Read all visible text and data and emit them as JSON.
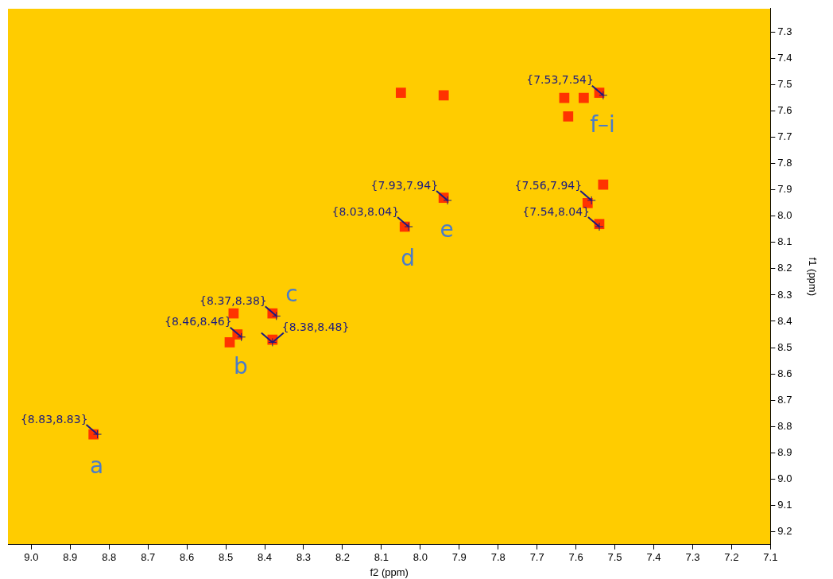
{
  "chart_data": {
    "type": "scatter",
    "xlabel": "f2 (ppm)",
    "ylabel": "f1 (ppm)",
    "x": [
      8.84,
      8.48,
      8.47,
      8.49,
      8.38,
      8.38,
      8.04,
      8.05,
      7.94,
      7.94,
      7.63,
      7.62,
      7.58,
      7.54,
      7.57,
      7.53,
      7.54
    ],
    "series": [
      {
        "color": "#ff3300",
        "values": [
          8.83,
          8.37,
          8.45,
          8.48,
          8.37,
          8.47,
          8.04,
          7.53,
          7.93,
          7.54,
          7.55,
          7.62,
          7.55,
          7.53,
          7.95,
          7.88,
          8.03
        ]
      }
    ],
    "marker": "square",
    "xlim": [
      9.06,
      7.1
    ],
    "xticks": [
      {
        "value": 9,
        "label": "9.0"
      },
      8.9,
      8.8,
      8.7,
      8.6,
      8.5,
      8.4,
      8.3,
      8.2,
      8.1,
      {
        "value": 8,
        "label": "8.0"
      },
      7.9,
      7.8,
      7.7,
      7.6,
      7.5,
      7.4,
      7.3,
      7.2,
      7.1
    ],
    "ylim": [
      9.25,
      7.21
    ],
    "yticks": [
      7.3,
      7.4,
      7.5,
      7.6,
      7.7,
      7.8,
      7.9,
      {
        "value": 8,
        "label": "8.0"
      },
      8.1,
      8.2,
      8.3,
      8.4,
      8.5,
      8.6,
      8.7,
      8.8,
      8.9,
      {
        "value": 9,
        "label": "9.0"
      },
      9.1,
      9.2
    ],
    "grid": false,
    "legend": false,
    "annotations": [
      {
        "text": "{8.83,8.83}",
        "x": 8.83,
        "y": 8.83
      },
      {
        "text": "{8.46,8.46}",
        "x": 8.46,
        "y": 8.46
      },
      {
        "text": "{8.37,8.38}",
        "x": 8.37,
        "y": 8.38
      },
      {
        "text": "{8.38,8.48}",
        "x": 8.38,
        "y": 8.48
      },
      {
        "text": "{8.03,8.04}",
        "x": 8.03,
        "y": 8.04
      },
      {
        "text": "{7.93,7.94}",
        "x": 7.93,
        "y": 7.94
      },
      {
        "text": "{7.53,7.54}",
        "x": 7.53,
        "y": 7.54
      },
      {
        "text": "{7.56,7.94}",
        "x": 7.56,
        "y": 7.94
      },
      {
        "text": "{7.54,8.04}",
        "x": 7.54,
        "y": 8.04
      },
      {
        "text": "a",
        "x": 8.84,
        "y": 8.83
      },
      {
        "text": "b",
        "x": 8.47,
        "y": 8.45
      },
      {
        "text": "c",
        "x": 8.38,
        "y": 8.37
      },
      {
        "text": "d",
        "x": 8.04,
        "y": 8.04
      },
      {
        "text": "e",
        "x": 7.94,
        "y": 7.93
      },
      {
        "text": "f–i",
        "x": 7.54,
        "y": 7.53
      }
    ]
  }
}
